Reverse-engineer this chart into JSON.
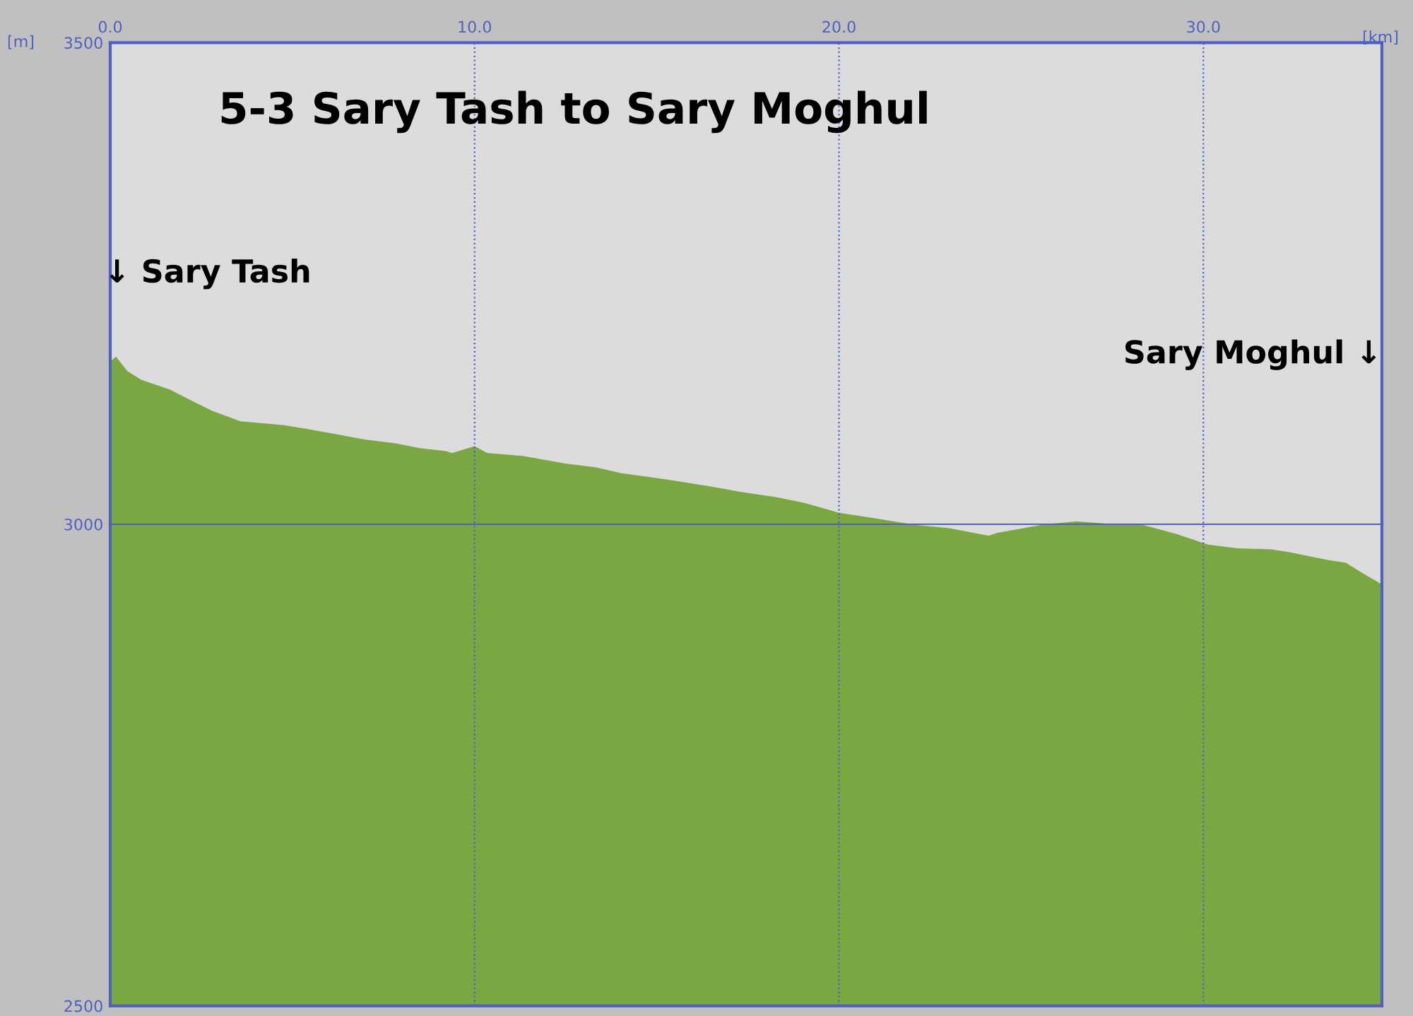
{
  "chart_data": {
    "type": "area",
    "title": "5-3 Sary Tash to Sary Moghul",
    "xlabel": "[km]",
    "ylabel": "[m]",
    "x": [
      0,
      0.16,
      0.47,
      0.85,
      1.63,
      2.25,
      2.79,
      3.57,
      4.73,
      5.39,
      6.28,
      6.98,
      7.83,
      8.49,
      9.22,
      9.38,
      10.0,
      10.35,
      11.32,
      12.48,
      13.33,
      14.03,
      15.19,
      16.36,
      17.25,
      18.29,
      19.07,
      20.0,
      21.01,
      22.17,
      23.02,
      24.11,
      24.34,
      25.66,
      26.51,
      27.6,
      28.37,
      29.26,
      30.12,
      30.93,
      31.86,
      32.36,
      33.41,
      33.91,
      34.38,
      34.88
    ],
    "series": [
      {
        "color": "#7ba743",
        "values": [
          3169,
          3174,
          3159,
          3150,
          3140,
          3128,
          3118,
          3107,
          3103,
          3099,
          3093,
          3088,
          3084,
          3079,
          3076,
          3074,
          3081,
          3074,
          3071,
          3063,
          3059,
          3053,
          3047,
          3040,
          3034,
          3028,
          3022,
          3012,
          3006,
          2999,
          2996,
          2988,
          2991,
          3000,
          3003,
          3000,
          2999,
          2990,
          2979,
          2975,
          2974,
          2971,
          2963,
          2960,
          2949,
          2938
        ]
      }
    ],
    "xlim": [
      0,
      34.9
    ],
    "ylim": [
      2500,
      3500
    ],
    "xticks": [
      {
        "value": 0,
        "label": "0.0"
      },
      {
        "value": 10,
        "label": "10.0"
      },
      {
        "value": 20,
        "label": "20.0"
      },
      {
        "value": 30,
        "label": "30.0"
      }
    ],
    "yticks": [
      2500,
      3000,
      3500
    ],
    "grid": "x",
    "ref_lines": [
      {
        "axis": "y",
        "value": 3000,
        "color": "#5060c0",
        "line_style": "solid"
      }
    ],
    "annotations": [
      "↓ Sary Tash",
      "Sary Moghul ↓"
    ]
  }
}
